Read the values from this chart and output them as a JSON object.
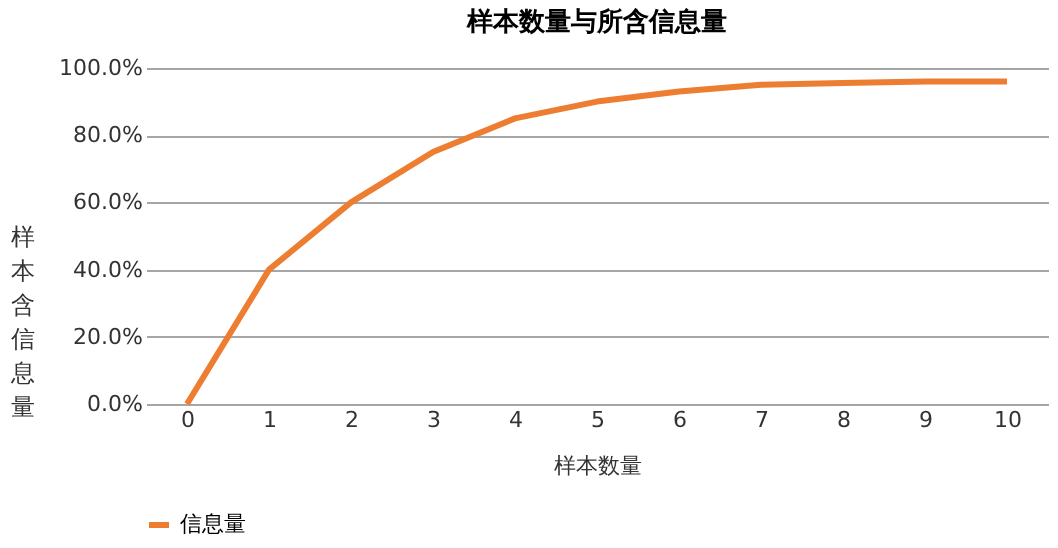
{
  "chart_data": {
    "type": "line",
    "title": "样本数量与所含信息量",
    "xlabel": "样本数量",
    "ylabel": "样本含信息量",
    "categories": [
      "0",
      "1",
      "2",
      "3",
      "4",
      "5",
      "6",
      "7",
      "8",
      "9",
      "10"
    ],
    "series": [
      {
        "name": "信息量",
        "color": "#ed7d31",
        "values": [
          0,
          40,
          60,
          75,
          85,
          90,
          93,
          95,
          95.5,
          96,
          96
        ]
      }
    ],
    "ylim": [
      0,
      100
    ],
    "yticks": [
      {
        "value": 0,
        "label": "0.0%"
      },
      {
        "value": 20,
        "label": "20.0%"
      },
      {
        "value": 40,
        "label": "40.0%"
      },
      {
        "value": 60,
        "label": "60.0%"
      },
      {
        "value": 80,
        "label": "80.0%"
      },
      {
        "value": 100,
        "label": "100.0%"
      }
    ],
    "grid": "y",
    "legend": "bottom",
    "marker": "none",
    "line_style": "solid"
  }
}
